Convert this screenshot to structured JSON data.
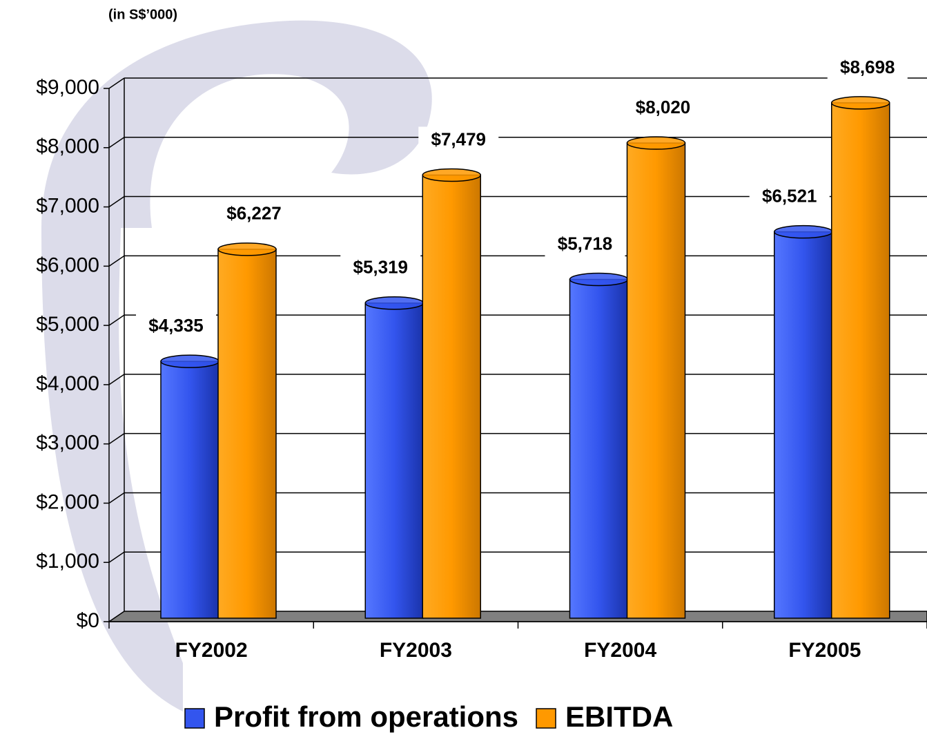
{
  "chart_data": {
    "type": "bar",
    "subtitle": "(in S$’000)",
    "categories": [
      "FY2002",
      "FY2003",
      "FY2004",
      "FY2005"
    ],
    "series": [
      {
        "name": "Profit from operations",
        "color": "#3355ee",
        "values": [
          4335,
          5319,
          5718,
          6521
        ],
        "value_labels": [
          "$4,335",
          "$5,319",
          "$5,718",
          "$6,521"
        ]
      },
      {
        "name": "EBITDA",
        "color": "#ff9900",
        "values": [
          6227,
          7479,
          8020,
          8698
        ],
        "value_labels": [
          "$6,227",
          "$7,479",
          "$8,020",
          "$8,698"
        ]
      }
    ],
    "ylim": [
      0,
      9000
    ],
    "yticks": [
      {
        "value": 0,
        "label": "$0"
      },
      {
        "value": 1000,
        "label": "$1,000"
      },
      {
        "value": 2000,
        "label": "$2,000"
      },
      {
        "value": 3000,
        "label": "$3,000"
      },
      {
        "value": 4000,
        "label": "$4,000"
      },
      {
        "value": 5000,
        "label": "$5,000"
      },
      {
        "value": 6000,
        "label": "$6,000"
      },
      {
        "value": 7000,
        "label": "$7,000"
      },
      {
        "value": 8000,
        "label": "$8,000"
      },
      {
        "value": 9000,
        "label": "$9,000"
      }
    ],
    "grid": true,
    "legend": "bottom"
  }
}
